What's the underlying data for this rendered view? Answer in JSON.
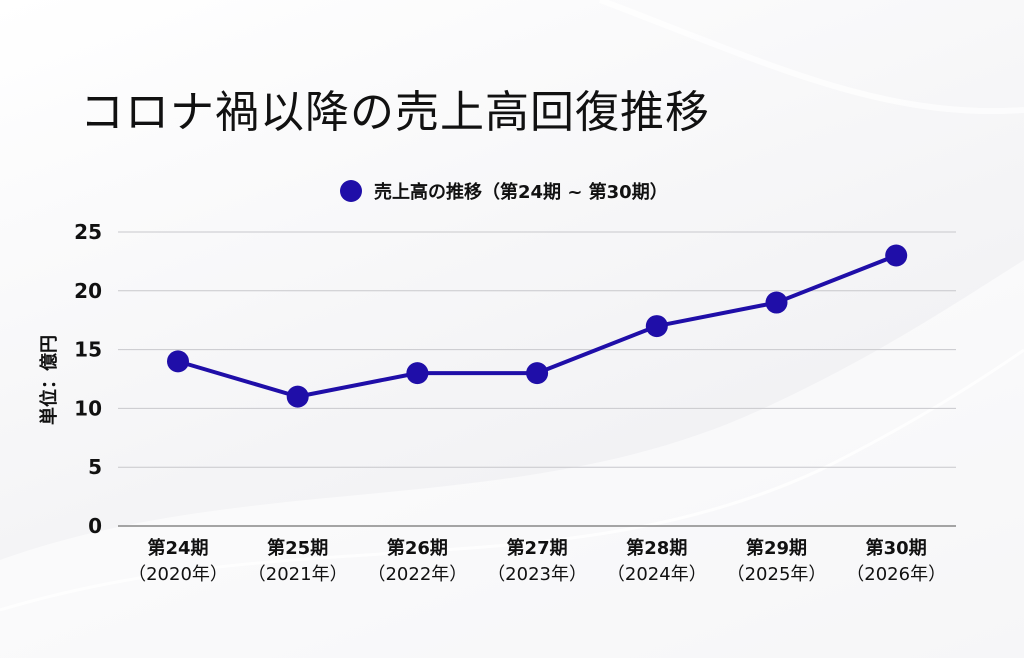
{
  "title": "コロナ禍以降の売上高回復推移",
  "chart_data": {
    "type": "line",
    "categories": [
      "第24期",
      "第25期",
      "第26期",
      "第27期",
      "第28期",
      "第29期",
      "第30期"
    ],
    "category_sublabels": [
      "（2020年）",
      "（2021年）",
      "（2022年）",
      "（2023年）",
      "（2024年）",
      "（2025年）",
      "（2026年）"
    ],
    "series": [
      {
        "name": "売上高の推移（第24期 ~ 第30期）",
        "values": [
          14,
          11,
          13,
          13,
          17,
          19,
          23
        ]
      }
    ],
    "ylabel": "単位：億円",
    "ylim": [
      0,
      25
    ],
    "yticks": [
      0,
      5,
      10,
      15,
      20,
      25
    ],
    "grid": true,
    "legend_position": "top-center",
    "colors": {
      "series": "#1f0ea8",
      "grid": "#c8c8cc",
      "axis": "#888888"
    }
  }
}
